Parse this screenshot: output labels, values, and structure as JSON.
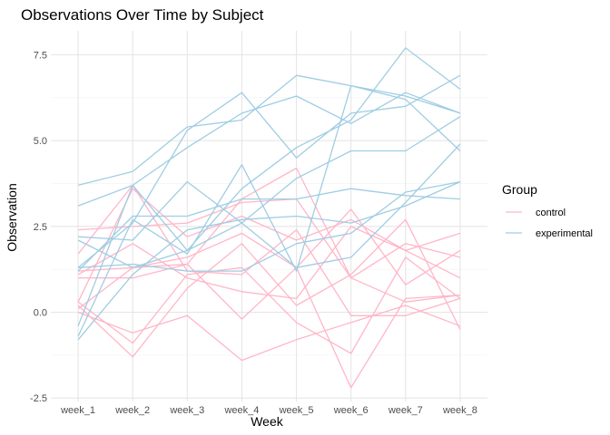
{
  "chart_data": {
    "type": "line",
    "title": "Observations Over Time by Subject",
    "xlabel": "Week",
    "ylabel": "Observation",
    "categories": [
      "week_1",
      "week_2",
      "week_3",
      "week_4",
      "week_5",
      "week_6",
      "week_7",
      "week_8"
    ],
    "ylim": [
      -2.6,
      8.2
    ],
    "yticks": [
      -2.5,
      0.0,
      2.5,
      5.0,
      7.5
    ],
    "ytick_labels": [
      "-2.5",
      "0.0",
      "2.5",
      "5.0",
      "7.5"
    ],
    "grid": true,
    "legend": {
      "title": "Group",
      "position": "right",
      "entries": [
        {
          "label": "control",
          "color": "#ffb6c8"
        },
        {
          "label": "experimental",
          "color": "#9fcde3"
        }
      ]
    },
    "series": [
      {
        "group": "control",
        "values": [
          0.2,
          -1.3,
          0.7,
          2.0,
          0.2,
          1.1,
          2.7,
          -0.5
        ]
      },
      {
        "group": "control",
        "values": [
          1.1,
          2.0,
          1.0,
          0.6,
          0.4,
          2.5,
          1.8,
          2.3
        ]
      },
      {
        "group": "control",
        "values": [
          0.1,
          1.3,
          1.6,
          2.3,
          1.3,
          3.0,
          0.8,
          1.8
        ]
      },
      {
        "group": "control",
        "values": [
          1.2,
          1.3,
          1.4,
          3.3,
          4.2,
          1.0,
          2.0,
          1.6
        ]
      },
      {
        "group": "control",
        "values": [
          2.4,
          2.5,
          2.6,
          3.2,
          3.3,
          1.0,
          0.3,
          0.5
        ]
      },
      {
        "group": "control",
        "values": [
          0.3,
          3.6,
          2.2,
          2.8,
          2.1,
          2.7,
          1.8,
          1.0
        ]
      },
      {
        "group": "control",
        "values": [
          1.7,
          3.7,
          1.2,
          1.1,
          2.4,
          -0.1,
          -0.1,
          0.4
        ]
      },
      {
        "group": "control",
        "values": [
          0.0,
          -0.6,
          -0.1,
          -1.4,
          -0.8,
          -0.3,
          0.2,
          -0.4
        ]
      },
      {
        "group": "control",
        "values": [
          1.0,
          1.0,
          1.4,
          -0.2,
          1.3,
          -2.2,
          0.4,
          0.5
        ]
      },
      {
        "group": "control",
        "values": [
          0.3,
          -0.9,
          1.1,
          1.3,
          -0.3,
          -1.2,
          1.6,
          0.4
        ]
      },
      {
        "group": "experimental",
        "values": [
          3.7,
          4.1,
          5.4,
          5.6,
          6.9,
          6.6,
          6.3,
          5.8
        ]
      },
      {
        "group": "experimental",
        "values": [
          3.1,
          3.7,
          4.8,
          5.8,
          6.3,
          5.5,
          6.4,
          5.8
        ]
      },
      {
        "group": "experimental",
        "values": [
          1.3,
          2.6,
          5.3,
          6.4,
          4.5,
          5.8,
          6.0,
          6.9
        ]
      },
      {
        "group": "experimental",
        "values": [
          -0.7,
          2.7,
          1.7,
          4.3,
          1.2,
          6.6,
          6.2,
          4.7
        ]
      },
      {
        "group": "experimental",
        "values": [
          -0.4,
          3.7,
          1.8,
          3.6,
          4.8,
          5.6,
          7.7,
          6.5
        ]
      },
      {
        "group": "experimental",
        "values": [
          2.2,
          2.1,
          3.8,
          2.6,
          3.9,
          4.7,
          4.7,
          5.7
        ]
      },
      {
        "group": "experimental",
        "values": [
          1.2,
          2.8,
          2.8,
          3.3,
          3.3,
          3.6,
          3.4,
          3.3
        ]
      },
      {
        "group": "experimental",
        "values": [
          -0.8,
          1.1,
          2.4,
          2.7,
          2.8,
          2.6,
          3.1,
          3.8
        ]
      },
      {
        "group": "experimental",
        "values": [
          1.3,
          1.4,
          1.2,
          1.2,
          2.0,
          2.3,
          3.5,
          3.8
        ]
      },
      {
        "group": "experimental",
        "values": [
          2.1,
          1.3,
          1.8,
          2.6,
          1.3,
          1.6,
          3.2,
          4.9
        ]
      }
    ]
  }
}
